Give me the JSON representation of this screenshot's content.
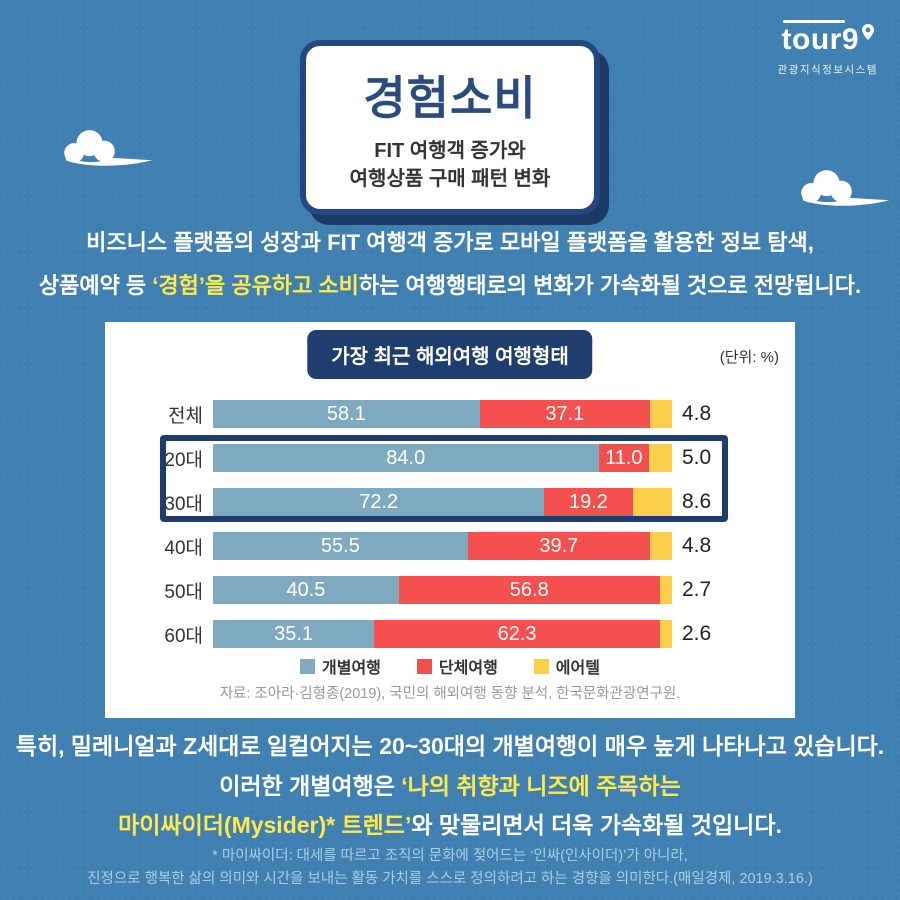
{
  "colors": {
    "background": "#3f80b1",
    "navy_border": "#24477d",
    "navy_shadow": "#1d3a66",
    "title_text": "#2b4a7e",
    "highlight_yellow": "#ffe94f",
    "bar_blue": "#7fa9be",
    "bar_red": "#f4514e",
    "bar_yellow": "#fbce4c",
    "panel_background": "#ffffff",
    "dark_text": "#333333",
    "source_gray": "#999999"
  },
  "logo": {
    "wordmark": "tour9",
    "caption": "관광지식정보시스템"
  },
  "header": {
    "title": "경험소비",
    "subtitle_line1": "FIT 여행객 증가와",
    "subtitle_line2": "여행상품 구매 패턴 변화"
  },
  "intro": {
    "line1": "비즈니스 플랫폼의 성장과 FIT 여행객 증가로 모바일 플랫폼을 활용한 정보 탐색,",
    "line2_pre": "상품예약 등 ",
    "line2_highlight": "‘경험’을 공유하고 소비",
    "line2_post": "하는 여행행태로의 변화가 가속화될 것으로 전망됩니다."
  },
  "chart_data": {
    "type": "bar",
    "orientation": "horizontal_stacked",
    "title": "가장 최근 해외여행 여행형태",
    "unit_label": "(단위: %)",
    "categories": [
      "전체",
      "20대",
      "30대",
      "40대",
      "50대",
      "60대"
    ],
    "series": [
      {
        "name": "개별여행",
        "color": "#7fa9be",
        "value_label_position": "inside",
        "values": [
          58.1,
          84.0,
          72.2,
          55.5,
          40.5,
          35.1
        ]
      },
      {
        "name": "단체여행",
        "color": "#f4514e",
        "value_label_position": "inside",
        "values": [
          37.1,
          11.0,
          19.2,
          39.7,
          56.8,
          62.3
        ]
      },
      {
        "name": "에어텔",
        "color": "#fbce4c",
        "value_label_position": "outside",
        "values": [
          4.8,
          5.0,
          8.6,
          4.8,
          2.7,
          2.6
        ]
      }
    ],
    "xlim": [
      0,
      100
    ],
    "grid": false,
    "legend_position": "bottom",
    "highlighted_categories": [
      "20대",
      "30대"
    ],
    "source": "자료: 조아라·김형종(2019), 국민의 해외여행 동향 분석, 한국문화관광연구원."
  },
  "outro": {
    "line1": "특히, 밀레니얼과 Z세대로 일컬어지는 20~30대의 개별여행이 매우 높게 나타나고 있습니다.",
    "line2_pre": "이러한 개별여행은 ",
    "line2_highlight": "‘나의 취향과 니즈에 주목하는",
    "line3_highlight": "마이싸이더(Mysider)* 트렌드’",
    "line3_post": "와 맞물리면서 더욱 가속화될 것입니다."
  },
  "footnote": {
    "line1": "* 마이싸이더: 대세를 따르고 조직의 문화에 젖어드는 ‘인싸(인사이더)’가 아니라,",
    "line2": "진정으로 행복한 삶의 의미와 시간을 보내는 활동 가치를 스스로 정의하려고 하는 경향을 의미한다.(매일경제, 2019.3.16.)"
  }
}
